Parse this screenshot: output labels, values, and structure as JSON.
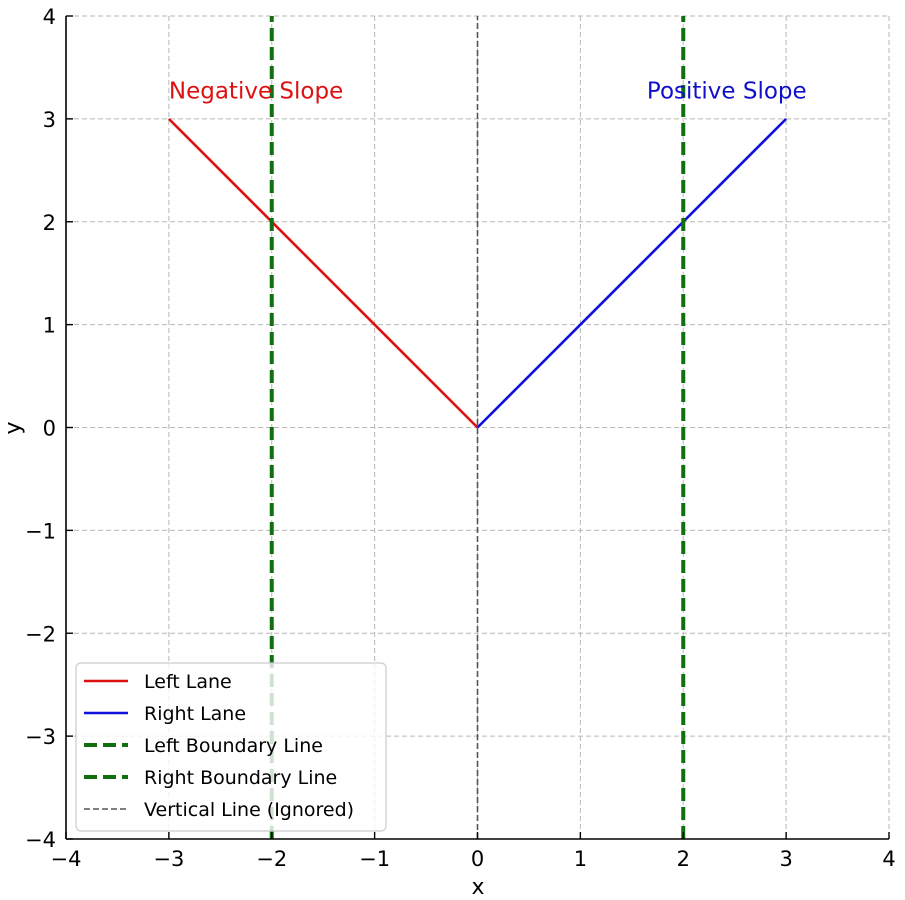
{
  "chart_data": {
    "type": "line",
    "xlabel": "x",
    "ylabel": "y",
    "xlim": [
      -4,
      4
    ],
    "ylim": [
      -4,
      4
    ],
    "xticks": [
      -4,
      -3,
      -2,
      -1,
      0,
      1,
      2,
      3,
      4
    ],
    "yticks": [
      -4,
      -3,
      -2,
      -1,
      0,
      1,
      2,
      3,
      4
    ],
    "xtick_labels": [
      "−4",
      "−3",
      "−2",
      "−1",
      "0",
      "1",
      "2",
      "3",
      "4"
    ],
    "ytick_labels": [
      "−4",
      "−3",
      "−2",
      "−1",
      "0",
      "1",
      "2",
      "3",
      "4"
    ],
    "grid": true,
    "legend_position": "bottom-left",
    "series": [
      {
        "name": "Left Lane",
        "color": "#dd1111",
        "style": "solid",
        "x": [
          -3,
          0
        ],
        "y": [
          3,
          0
        ]
      },
      {
        "name": "Right Lane",
        "color": "#1111dd",
        "style": "solid",
        "x": [
          0,
          3
        ],
        "y": [
          0,
          3
        ]
      },
      {
        "name": "Left Boundary Line",
        "color": "#107010",
        "style": "dashed",
        "x": [
          -2,
          -2
        ],
        "y": [
          -4,
          4
        ]
      },
      {
        "name": "Right Boundary Line",
        "color": "#107010",
        "style": "dashed",
        "x": [
          2,
          2
        ],
        "y": [
          -4,
          4
        ]
      },
      {
        "name": "Vertical Line (Ignored)",
        "color": "#555555",
        "style": "thin-dashed",
        "x": [
          0,
          0
        ],
        "y": [
          -4,
          4
        ]
      }
    ],
    "annotations": [
      {
        "name": "negative-slope-label",
        "text": "Negative Slope",
        "x": -3,
        "y": 3.2,
        "color": "#dd1111",
        "align": "start"
      },
      {
        "name": "positive-slope-label",
        "text": "Positive Slope",
        "x": 3.2,
        "y": 3.2,
        "color": "#1111cc",
        "align": "end"
      }
    ]
  }
}
